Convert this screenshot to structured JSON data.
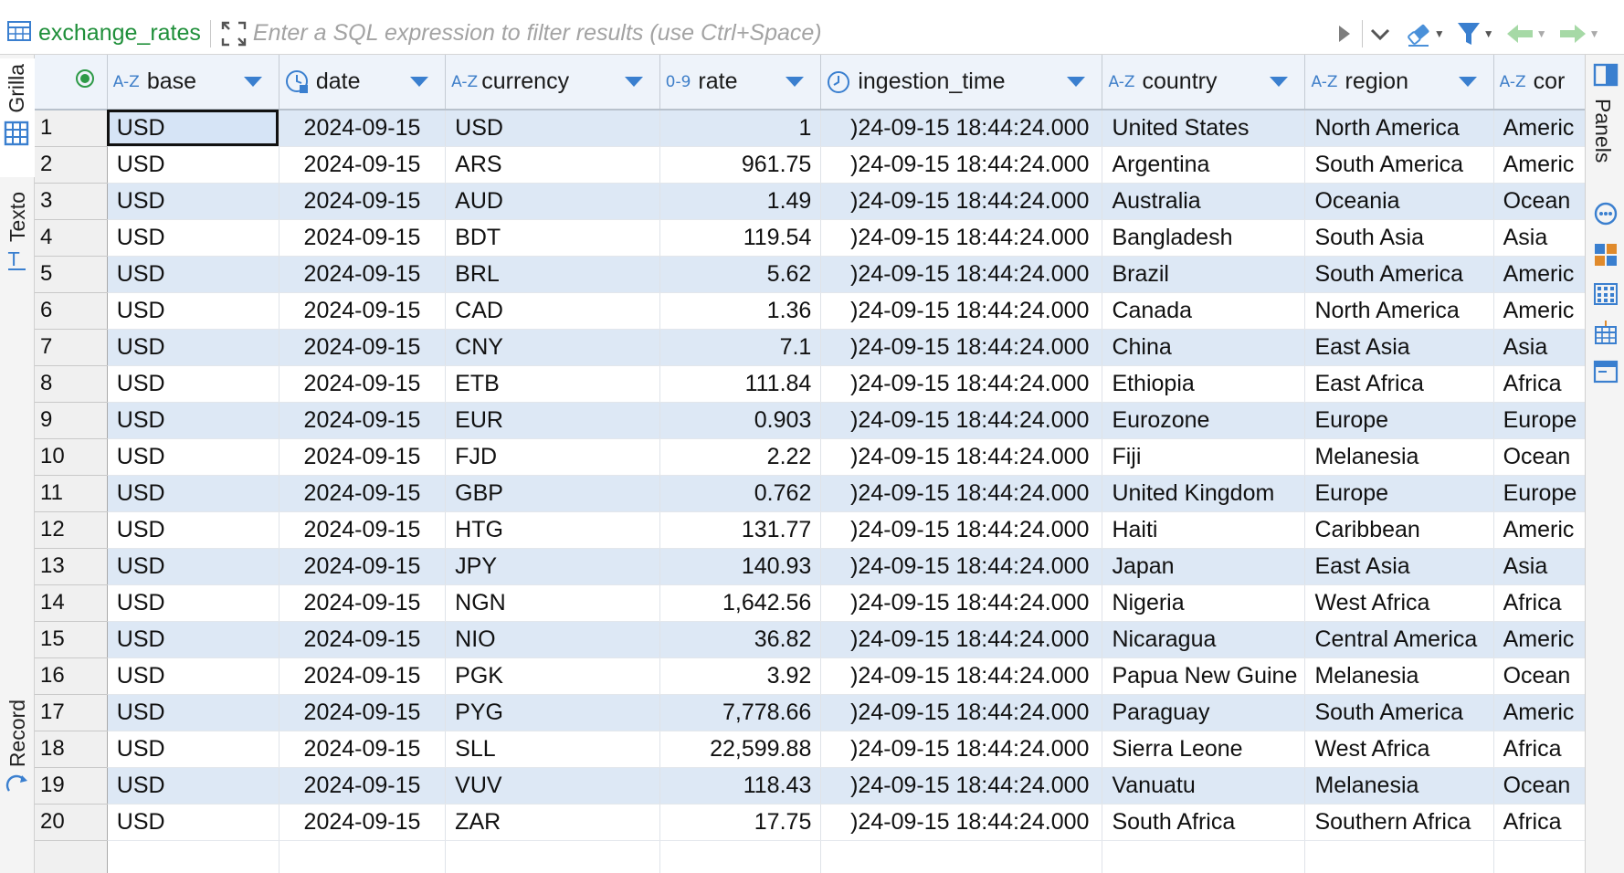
{
  "filter_bar": {
    "table_name": "exchange_rates",
    "filter_placeholder": "Enter a SQL expression to filter results (use Ctrl+Space)"
  },
  "left_tabs": {
    "grid_label": "Grilla",
    "text_label": "Texto",
    "record_label": "Record"
  },
  "right_tabs": {
    "panels_label": "Panels"
  },
  "columns": [
    {
      "type_badge": "A-Z",
      "label": "base"
    },
    {
      "type_badge": "",
      "label": "date"
    },
    {
      "type_badge": "A-Z",
      "label": "currency"
    },
    {
      "type_badge": "0-9",
      "label": "rate"
    },
    {
      "type_badge": "",
      "label": "ingestion_time"
    },
    {
      "type_badge": "A-Z",
      "label": "country"
    },
    {
      "type_badge": "A-Z",
      "label": "region"
    },
    {
      "type_badge": "A-Z",
      "label": "cor"
    }
  ],
  "rows": [
    {
      "n": "1",
      "base": "USD",
      "date": "2024-09-15",
      "currency": "USD",
      "rate": "1",
      "ingestion_time": ")24-09-15 18:44:24.000",
      "country": "United States",
      "region": "North America",
      "cont": "Americ"
    },
    {
      "n": "2",
      "base": "USD",
      "date": "2024-09-15",
      "currency": "ARS",
      "rate": "961.75",
      "ingestion_time": ")24-09-15 18:44:24.000",
      "country": "Argentina",
      "region": "South America",
      "cont": "Americ"
    },
    {
      "n": "3",
      "base": "USD",
      "date": "2024-09-15",
      "currency": "AUD",
      "rate": "1.49",
      "ingestion_time": ")24-09-15 18:44:24.000",
      "country": "Australia",
      "region": "Oceania",
      "cont": "Ocean"
    },
    {
      "n": "4",
      "base": "USD",
      "date": "2024-09-15",
      "currency": "BDT",
      "rate": "119.54",
      "ingestion_time": ")24-09-15 18:44:24.000",
      "country": "Bangladesh",
      "region": "South Asia",
      "cont": "Asia"
    },
    {
      "n": "5",
      "base": "USD",
      "date": "2024-09-15",
      "currency": "BRL",
      "rate": "5.62",
      "ingestion_time": ")24-09-15 18:44:24.000",
      "country": "Brazil",
      "region": "South America",
      "cont": "Americ"
    },
    {
      "n": "6",
      "base": "USD",
      "date": "2024-09-15",
      "currency": "CAD",
      "rate": "1.36",
      "ingestion_time": ")24-09-15 18:44:24.000",
      "country": "Canada",
      "region": "North America",
      "cont": "Americ"
    },
    {
      "n": "7",
      "base": "USD",
      "date": "2024-09-15",
      "currency": "CNY",
      "rate": "7.1",
      "ingestion_time": ")24-09-15 18:44:24.000",
      "country": "China",
      "region": "East Asia",
      "cont": "Asia"
    },
    {
      "n": "8",
      "base": "USD",
      "date": "2024-09-15",
      "currency": "ETB",
      "rate": "111.84",
      "ingestion_time": ")24-09-15 18:44:24.000",
      "country": "Ethiopia",
      "region": "East Africa",
      "cont": "Africa"
    },
    {
      "n": "9",
      "base": "USD",
      "date": "2024-09-15",
      "currency": "EUR",
      "rate": "0.903",
      "ingestion_time": ")24-09-15 18:44:24.000",
      "country": "Eurozone",
      "region": "Europe",
      "cont": "Europe"
    },
    {
      "n": "10",
      "base": "USD",
      "date": "2024-09-15",
      "currency": "FJD",
      "rate": "2.22",
      "ingestion_time": ")24-09-15 18:44:24.000",
      "country": "Fiji",
      "region": "Melanesia",
      "cont": "Ocean"
    },
    {
      "n": "11",
      "base": "USD",
      "date": "2024-09-15",
      "currency": "GBP",
      "rate": "0.762",
      "ingestion_time": ")24-09-15 18:44:24.000",
      "country": "United Kingdom",
      "region": "Europe",
      "cont": "Europe"
    },
    {
      "n": "12",
      "base": "USD",
      "date": "2024-09-15",
      "currency": "HTG",
      "rate": "131.77",
      "ingestion_time": ")24-09-15 18:44:24.000",
      "country": "Haiti",
      "region": "Caribbean",
      "cont": "Americ"
    },
    {
      "n": "13",
      "base": "USD",
      "date": "2024-09-15",
      "currency": "JPY",
      "rate": "140.93",
      "ingestion_time": ")24-09-15 18:44:24.000",
      "country": "Japan",
      "region": "East Asia",
      "cont": "Asia"
    },
    {
      "n": "14",
      "base": "USD",
      "date": "2024-09-15",
      "currency": "NGN",
      "rate": "1,642.56",
      "ingestion_time": ")24-09-15 18:44:24.000",
      "country": "Nigeria",
      "region": "West Africa",
      "cont": "Africa"
    },
    {
      "n": "15",
      "base": "USD",
      "date": "2024-09-15",
      "currency": "NIO",
      "rate": "36.82",
      "ingestion_time": ")24-09-15 18:44:24.000",
      "country": "Nicaragua",
      "region": "Central America",
      "cont": "Americ"
    },
    {
      "n": "16",
      "base": "USD",
      "date": "2024-09-15",
      "currency": "PGK",
      "rate": "3.92",
      "ingestion_time": ")24-09-15 18:44:24.000",
      "country": "Papua New Guine",
      "region": "Melanesia",
      "cont": "Ocean"
    },
    {
      "n": "17",
      "base": "USD",
      "date": "2024-09-15",
      "currency": "PYG",
      "rate": "7,778.66",
      "ingestion_time": ")24-09-15 18:44:24.000",
      "country": "Paraguay",
      "region": "South America",
      "cont": "Americ"
    },
    {
      "n": "18",
      "base": "USD",
      "date": "2024-09-15",
      "currency": "SLL",
      "rate": "22,599.88",
      "ingestion_time": ")24-09-15 18:44:24.000",
      "country": "Sierra Leone",
      "region": "West Africa",
      "cont": "Africa"
    },
    {
      "n": "19",
      "base": "USD",
      "date": "2024-09-15",
      "currency": "VUV",
      "rate": "118.43",
      "ingestion_time": ")24-09-15 18:44:24.000",
      "country": "Vanuatu",
      "region": "Melanesia",
      "cont": "Ocean"
    },
    {
      "n": "20",
      "base": "USD",
      "date": "2024-09-15",
      "currency": "ZAR",
      "rate": "17.75",
      "ingestion_time": ")24-09-15 18:44:24.000",
      "country": "South Africa",
      "region": "Southern Africa",
      "cont": "Africa"
    }
  ],
  "colors": {
    "accent_blue": "#3a7fcf",
    "table_name_green": "#1f8f3a",
    "row_stripe": "#dde8f5"
  }
}
